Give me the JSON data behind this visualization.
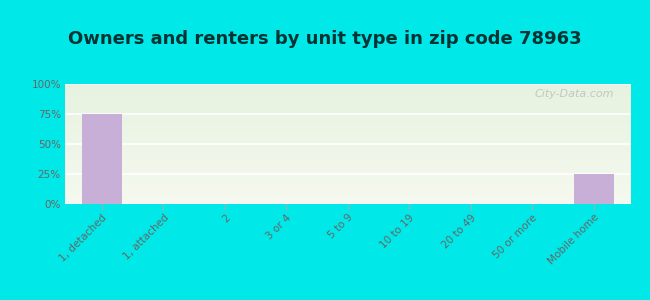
{
  "title": "Owners and renters by unit type in zip code 78963",
  "categories": [
    "1, detached",
    "1, attached",
    "2",
    "3 or 4",
    "5 to 9",
    "10 to 19",
    "20 to 49",
    "50 or more",
    "Mobile home"
  ],
  "values": [
    75,
    0,
    0,
    0,
    0,
    0,
    0,
    0,
    25
  ],
  "bar_color": "#c8afd8",
  "ylim": [
    0,
    100
  ],
  "yticks": [
    0,
    25,
    50,
    75,
    100
  ],
  "ytick_labels": [
    "0%",
    "25%",
    "50%",
    "75%",
    "100%"
  ],
  "bg_outer": "#00e8e8",
  "bg_plot_top": "#e6f2e0",
  "bg_plot_bottom": "#f5f8ee",
  "watermark": "City-Data.com",
  "title_fontsize": 13,
  "tick_fontsize": 7.5,
  "title_color": "#003333"
}
